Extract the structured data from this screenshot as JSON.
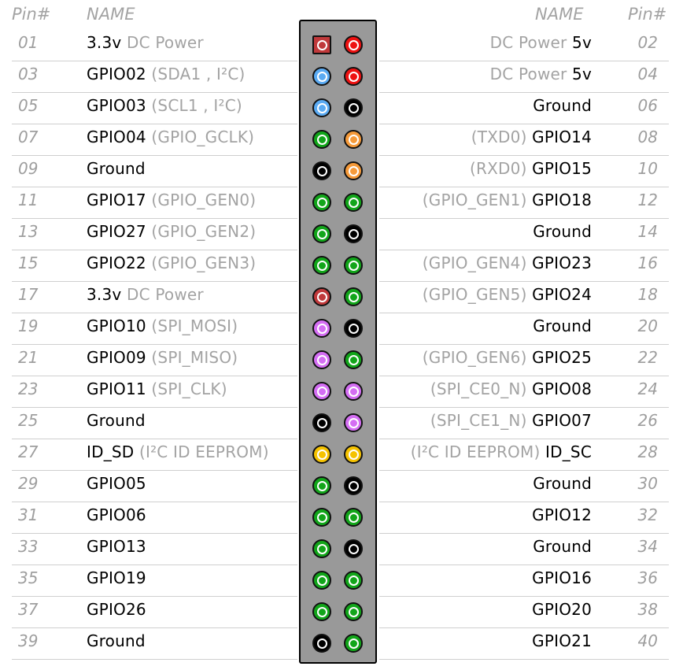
{
  "headers": {
    "left_pin": "Pin#",
    "left_name": "NAME",
    "right_name": "NAME",
    "right_pin": "Pin#"
  },
  "colors": {
    "power_3v3": "#c0393b",
    "power_5v": "#ee1111",
    "i2c": "#5aaaf2",
    "ground": "#000000",
    "gpio": "#12a51a",
    "uart": "#f59a3a",
    "spi": "#d46ef3",
    "eeprom": "#f5c200"
  },
  "rows": [
    {
      "l_no": "01",
      "l_a": "3.3v",
      "l_b": " DC Power",
      "l_gray_first": false,
      "l_pin": "power_3v3",
      "l_square": true,
      "r_no": "02",
      "r_a": "DC Power ",
      "r_b": "5v",
      "r_gray_first": true,
      "r_pin": "power_5v"
    },
    {
      "l_no": "03",
      "l_a": "GPIO02",
      "l_b": " (SDA1 , I²C)",
      "l_gray_first": false,
      "l_pin": "i2c",
      "r_no": "04",
      "r_a": "DC Power ",
      "r_b": "5v",
      "r_gray_first": true,
      "r_pin": "power_5v"
    },
    {
      "l_no": "05",
      "l_a": "GPIO03",
      "l_b": " (SCL1 , I²C)",
      "l_gray_first": false,
      "l_pin": "i2c",
      "r_no": "06",
      "r_a": "",
      "r_b": "Ground",
      "r_gray_first": true,
      "r_pin": "ground"
    },
    {
      "l_no": "07",
      "l_a": "GPIO04",
      "l_b": " (GPIO_GCLK)",
      "l_gray_first": false,
      "l_pin": "gpio",
      "r_no": "08",
      "r_a": "(TXD0) ",
      "r_b": "GPIO14",
      "r_gray_first": true,
      "r_pin": "uart"
    },
    {
      "l_no": "09",
      "l_a": "Ground",
      "l_b": "",
      "l_gray_first": false,
      "l_pin": "ground",
      "r_no": "10",
      "r_a": "(RXD0) ",
      "r_b": "GPIO15",
      "r_gray_first": true,
      "r_pin": "uart"
    },
    {
      "l_no": "11",
      "l_a": "GPIO17",
      "l_b": " (GPIO_GEN0)",
      "l_gray_first": false,
      "l_pin": "gpio",
      "r_no": "12",
      "r_a": "(GPIO_GEN1) ",
      "r_b": "GPIO18",
      "r_gray_first": true,
      "r_pin": "gpio"
    },
    {
      "l_no": "13",
      "l_a": "GPIO27",
      "l_b": " (GPIO_GEN2)",
      "l_gray_first": false,
      "l_pin": "gpio",
      "r_no": "14",
      "r_a": "",
      "r_b": "Ground",
      "r_gray_first": true,
      "r_pin": "ground"
    },
    {
      "l_no": "15",
      "l_a": "GPIO22",
      "l_b": " (GPIO_GEN3)",
      "l_gray_first": false,
      "l_pin": "gpio",
      "r_no": "16",
      "r_a": "(GPIO_GEN4) ",
      "r_b": "GPIO23",
      "r_gray_first": true,
      "r_pin": "gpio"
    },
    {
      "l_no": "17",
      "l_a": "3.3v",
      "l_b": " DC Power",
      "l_gray_first": false,
      "l_pin": "power_3v3",
      "r_no": "18",
      "r_a": "(GPIO_GEN5) ",
      "r_b": "GPIO24",
      "r_gray_first": true,
      "r_pin": "gpio"
    },
    {
      "l_no": "19",
      "l_a": "GPIO10",
      "l_b": " (SPI_MOSI)",
      "l_gray_first": false,
      "l_pin": "spi",
      "r_no": "20",
      "r_a": "",
      "r_b": "Ground",
      "r_gray_first": true,
      "r_pin": "ground"
    },
    {
      "l_no": "21",
      "l_a": "GPIO09",
      "l_b": " (SPI_MISO)",
      "l_gray_first": false,
      "l_pin": "spi",
      "r_no": "22",
      "r_a": "(GPIO_GEN6) ",
      "r_b": "GPIO25",
      "r_gray_first": true,
      "r_pin": "gpio"
    },
    {
      "l_no": "23",
      "l_a": "GPIO11",
      "l_b": " (SPI_CLK)",
      "l_gray_first": false,
      "l_pin": "spi",
      "r_no": "24",
      "r_a": "(SPI_CE0_N) ",
      "r_b": "GPIO08",
      "r_gray_first": true,
      "r_pin": "spi"
    },
    {
      "l_no": "25",
      "l_a": "Ground",
      "l_b": "",
      "l_gray_first": false,
      "l_pin": "ground",
      "r_no": "26",
      "r_a": "(SPI_CE1_N) ",
      "r_b": "GPIO07",
      "r_gray_first": true,
      "r_pin": "spi"
    },
    {
      "l_no": "27",
      "l_a": "ID_SD",
      "l_b": " (I²C ID EEPROM)",
      "l_gray_first": false,
      "l_pin": "eeprom",
      "r_no": "28",
      "r_a": "(I²C ID EEPROM) ",
      "r_b": "ID_SC",
      "r_gray_first": true,
      "r_pin": "eeprom"
    },
    {
      "l_no": "29",
      "l_a": "GPIO05",
      "l_b": "",
      "l_gray_first": false,
      "l_pin": "gpio",
      "r_no": "30",
      "r_a": "",
      "r_b": "Ground",
      "r_gray_first": true,
      "r_pin": "ground"
    },
    {
      "l_no": "31",
      "l_a": "GPIO06",
      "l_b": "",
      "l_gray_first": false,
      "l_pin": "gpio",
      "r_no": "32",
      "r_a": "",
      "r_b": "GPIO12",
      "r_gray_first": true,
      "r_pin": "gpio"
    },
    {
      "l_no": "33",
      "l_a": "GPIO13",
      "l_b": "",
      "l_gray_first": false,
      "l_pin": "gpio",
      "r_no": "34",
      "r_a": "",
      "r_b": "Ground",
      "r_gray_first": true,
      "r_pin": "ground"
    },
    {
      "l_no": "35",
      "l_a": "GPIO19",
      "l_b": "",
      "l_gray_first": false,
      "l_pin": "gpio",
      "r_no": "36",
      "r_a": "",
      "r_b": "GPIO16",
      "r_gray_first": true,
      "r_pin": "gpio"
    },
    {
      "l_no": "37",
      "l_a": "GPIO26",
      "l_b": "",
      "l_gray_first": false,
      "l_pin": "gpio",
      "r_no": "38",
      "r_a": "",
      "r_b": "GPIO20",
      "r_gray_first": true,
      "r_pin": "gpio"
    },
    {
      "l_no": "39",
      "l_a": "Ground",
      "l_b": "",
      "l_gray_first": false,
      "l_pin": "ground",
      "r_no": "40",
      "r_a": "",
      "r_b": "GPIO21",
      "r_gray_first": true,
      "r_pin": "gpio"
    }
  ]
}
